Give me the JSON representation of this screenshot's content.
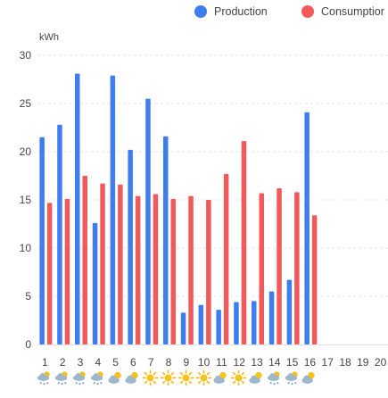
{
  "chart_data": {
    "type": "bar",
    "ylabel": "kWh",
    "ylim": [
      0,
      30
    ],
    "yticks": [
      0,
      5,
      10,
      15,
      20,
      25,
      30
    ],
    "grid": true,
    "legend_position": "top-right",
    "categories": [
      "1",
      "2",
      "3",
      "4",
      "5",
      "6",
      "7",
      "8",
      "9",
      "10",
      "11",
      "12",
      "13",
      "14",
      "15",
      "16",
      "17",
      "18",
      "19",
      "20"
    ],
    "series": [
      {
        "name": "Production",
        "color": "#3f7cf0",
        "values": [
          21.5,
          22.8,
          28.1,
          12.6,
          27.9,
          20.2,
          25.5,
          21.6,
          3.3,
          4.1,
          3.6,
          4.4,
          4.5,
          5.5,
          6.7,
          24.1,
          null,
          null,
          null,
          null
        ]
      },
      {
        "name": "Consumption",
        "color": "#f05a5a",
        "values": [
          14.7,
          15.1,
          17.5,
          16.7,
          16.6,
          15.4,
          15.6,
          15.1,
          15.4,
          15.0,
          17.7,
          21.1,
          15.7,
          16.2,
          15.8,
          13.4,
          null,
          null,
          null,
          null
        ]
      }
    ],
    "weather_icons": [
      "cloudy-rain",
      "cloudy-rain",
      "cloudy-rain",
      "cloudy-rain",
      "cloudy",
      "cloudy",
      "sun",
      "sun",
      "sun",
      "sun",
      "cloudy",
      "sun",
      "cloudy",
      "cloudy-rain",
      "cloudy-rain",
      "cloudy",
      null,
      null,
      null,
      null
    ]
  },
  "legend": {
    "production_label": "Production",
    "consumption_label": "Consumptior"
  }
}
